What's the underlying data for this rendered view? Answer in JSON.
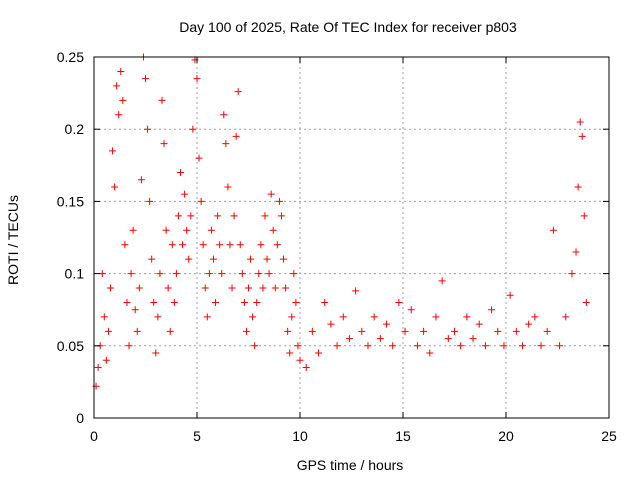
{
  "chart_data": {
    "type": "scatter",
    "title": "Day 100 of 2025, Rate Of TEC Index for receiver p803",
    "xlabel": "GPS time / hours",
    "ylabel": "ROTI / TECUs",
    "xlim": [
      0,
      25
    ],
    "ylim": [
      0,
      0.25
    ],
    "xticks": [
      0,
      5,
      10,
      15,
      20,
      25
    ],
    "yticks": [
      0,
      0.05,
      0.1,
      0.15,
      0.2,
      0.25
    ],
    "xtick_labels": [
      "0",
      "5",
      "10",
      "15",
      "20",
      "25"
    ],
    "ytick_labels": [
      "0",
      "0.05",
      "0.1",
      "0.15",
      "0.2",
      "0.25"
    ],
    "grid": true,
    "marker": "+",
    "color": "#ff0000",
    "series": [
      {
        "name": "ROTI",
        "points": [
          [
            0.1,
            0.022
          ],
          [
            0.2,
            0.035
          ],
          [
            0.3,
            0.05
          ],
          [
            0.4,
            0.1
          ],
          [
            0.5,
            0.07
          ],
          [
            0.6,
            0.04
          ],
          [
            0.7,
            0.06
          ],
          [
            0.8,
            0.09
          ],
          [
            0.9,
            0.185
          ],
          [
            1.0,
            0.16
          ],
          [
            1.1,
            0.23
          ],
          [
            1.2,
            0.21
          ],
          [
            1.3,
            0.24
          ],
          [
            1.4,
            0.22
          ],
          [
            1.5,
            0.12
          ],
          [
            1.6,
            0.08
          ],
          [
            1.7,
            0.05
          ],
          [
            1.8,
            0.1
          ],
          [
            1.9,
            0.13
          ],
          [
            2.0,
            0.075
          ],
          [
            2.1,
            0.06
          ],
          [
            2.2,
            0.09
          ],
          [
            2.3,
            0.165
          ],
          [
            2.4,
            0.25
          ],
          [
            2.5,
            0.235
          ],
          [
            2.6,
            0.2
          ],
          [
            2.7,
            0.15
          ],
          [
            2.8,
            0.11
          ],
          [
            2.9,
            0.08
          ],
          [
            3.0,
            0.045
          ],
          [
            3.1,
            0.07
          ],
          [
            3.2,
            0.1
          ],
          [
            3.3,
            0.22
          ],
          [
            3.4,
            0.19
          ],
          [
            3.5,
            0.13
          ],
          [
            3.6,
            0.09
          ],
          [
            3.7,
            0.06
          ],
          [
            3.8,
            0.12
          ],
          [
            3.9,
            0.08
          ],
          [
            4.0,
            0.1
          ],
          [
            4.1,
            0.14
          ],
          [
            4.2,
            0.17
          ],
          [
            4.3,
            0.12
          ],
          [
            4.4,
            0.155
          ],
          [
            4.5,
            0.13
          ],
          [
            4.6,
            0.11
          ],
          [
            4.7,
            0.14
          ],
          [
            4.8,
            0.2
          ],
          [
            4.9,
            0.248
          ],
          [
            5.0,
            0.235
          ],
          [
            5.1,
            0.18
          ],
          [
            5.2,
            0.15
          ],
          [
            5.3,
            0.12
          ],
          [
            5.4,
            0.09
          ],
          [
            5.5,
            0.07
          ],
          [
            5.6,
            0.1
          ],
          [
            5.7,
            0.13
          ],
          [
            5.8,
            0.11
          ],
          [
            5.9,
            0.08
          ],
          [
            6.0,
            0.14
          ],
          [
            6.1,
            0.12
          ],
          [
            6.2,
            0.1
          ],
          [
            6.3,
            0.21
          ],
          [
            6.4,
            0.19
          ],
          [
            6.5,
            0.16
          ],
          [
            6.6,
            0.12
          ],
          [
            6.7,
            0.09
          ],
          [
            6.8,
            0.14
          ],
          [
            6.9,
            0.195
          ],
          [
            7.0,
            0.226
          ],
          [
            7.1,
            0.12
          ],
          [
            7.2,
            0.1
          ],
          [
            7.3,
            0.08
          ],
          [
            7.4,
            0.06
          ],
          [
            7.5,
            0.09
          ],
          [
            7.6,
            0.11
          ],
          [
            7.7,
            0.07
          ],
          [
            7.8,
            0.05
          ],
          [
            7.9,
            0.08
          ],
          [
            8.0,
            0.1
          ],
          [
            8.1,
            0.12
          ],
          [
            8.2,
            0.09
          ],
          [
            8.3,
            0.14
          ],
          [
            8.4,
            0.11
          ],
          [
            8.5,
            0.1
          ],
          [
            8.6,
            0.155
          ],
          [
            8.7,
            0.13
          ],
          [
            8.8,
            0.09
          ],
          [
            8.9,
            0.12
          ],
          [
            9.0,
            0.15
          ],
          [
            9.1,
            0.14
          ],
          [
            9.2,
            0.11
          ],
          [
            9.3,
            0.09
          ],
          [
            9.4,
            0.06
          ],
          [
            9.5,
            0.045
          ],
          [
            9.6,
            0.07
          ],
          [
            9.7,
            0.1
          ],
          [
            9.8,
            0.08
          ],
          [
            9.9,
            0.05
          ],
          [
            10.0,
            0.04
          ],
          [
            10.3,
            0.035
          ],
          [
            10.6,
            0.06
          ],
          [
            10.9,
            0.045
          ],
          [
            11.2,
            0.08
          ],
          [
            11.5,
            0.065
          ],
          [
            11.8,
            0.05
          ],
          [
            12.1,
            0.07
          ],
          [
            12.4,
            0.055
          ],
          [
            12.7,
            0.088
          ],
          [
            13.0,
            0.06
          ],
          [
            13.3,
            0.05
          ],
          [
            13.6,
            0.07
          ],
          [
            13.9,
            0.055
          ],
          [
            14.2,
            0.065
          ],
          [
            14.5,
            0.05
          ],
          [
            14.8,
            0.08
          ],
          [
            15.1,
            0.06
          ],
          [
            15.4,
            0.075
          ],
          [
            15.7,
            0.05
          ],
          [
            16.0,
            0.06
          ],
          [
            16.3,
            0.045
          ],
          [
            16.6,
            0.07
          ],
          [
            16.9,
            0.095
          ],
          [
            17.2,
            0.055
          ],
          [
            17.5,
            0.06
          ],
          [
            17.8,
            0.05
          ],
          [
            18.1,
            0.07
          ],
          [
            18.4,
            0.055
          ],
          [
            18.7,
            0.065
          ],
          [
            19.0,
            0.05
          ],
          [
            19.3,
            0.075
          ],
          [
            19.6,
            0.06
          ],
          [
            19.9,
            0.05
          ],
          [
            20.2,
            0.085
          ],
          [
            20.5,
            0.06
          ],
          [
            20.8,
            0.05
          ],
          [
            21.1,
            0.065
          ],
          [
            21.4,
            0.07
          ],
          [
            21.7,
            0.05
          ],
          [
            22.0,
            0.06
          ],
          [
            22.3,
            0.13
          ],
          [
            22.6,
            0.05
          ],
          [
            22.9,
            0.07
          ],
          [
            23.2,
            0.1
          ],
          [
            23.4,
            0.115
          ],
          [
            23.5,
            0.16
          ],
          [
            23.6,
            0.205
          ],
          [
            23.7,
            0.195
          ],
          [
            23.8,
            0.14
          ],
          [
            23.9,
            0.08
          ]
        ]
      }
    ]
  }
}
